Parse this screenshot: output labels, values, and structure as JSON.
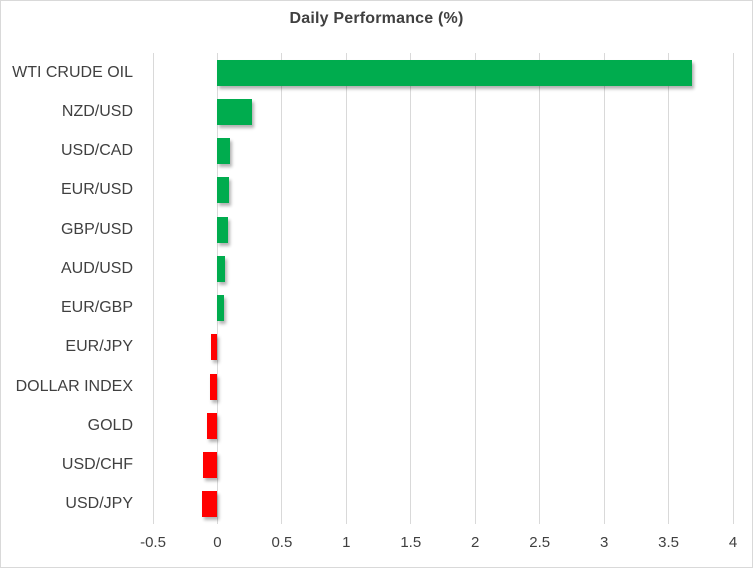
{
  "chart_data": {
    "type": "bar",
    "orientation": "horizontal",
    "title": "Daily Performance (%)",
    "categories": [
      "WTI CRUDE OIL",
      "NZD/USD",
      "USD/CAD",
      "EUR/USD",
      "GBP/USD",
      "AUD/USD",
      "EUR/GBP",
      "EUR/JPY",
      "DOLLAR INDEX",
      "GOLD",
      "USD/CHF",
      "USD/JPY"
    ],
    "values": [
      3.68,
      0.27,
      0.1,
      0.09,
      0.08,
      0.06,
      0.05,
      -0.05,
      -0.06,
      -0.08,
      -0.11,
      -0.12
    ],
    "xlabel": "",
    "ylabel": "",
    "xlim": [
      -0.5,
      4
    ],
    "xticks": [
      -0.5,
      0,
      0.5,
      1,
      1.5,
      2,
      2.5,
      3,
      3.5,
      4
    ],
    "xtick_labels": [
      "-0.5",
      "0",
      "0.5",
      "1",
      "1.5",
      "2",
      "2.5",
      "3",
      "3.5",
      "4"
    ],
    "grid": true,
    "legend": false,
    "colors": {
      "positive": "#00AC4E",
      "negative": "#FF0000",
      "gridline": "#D9D9D9",
      "text": "#404040",
      "border": "#D9D9D9",
      "background": "#FFFFFF"
    }
  }
}
